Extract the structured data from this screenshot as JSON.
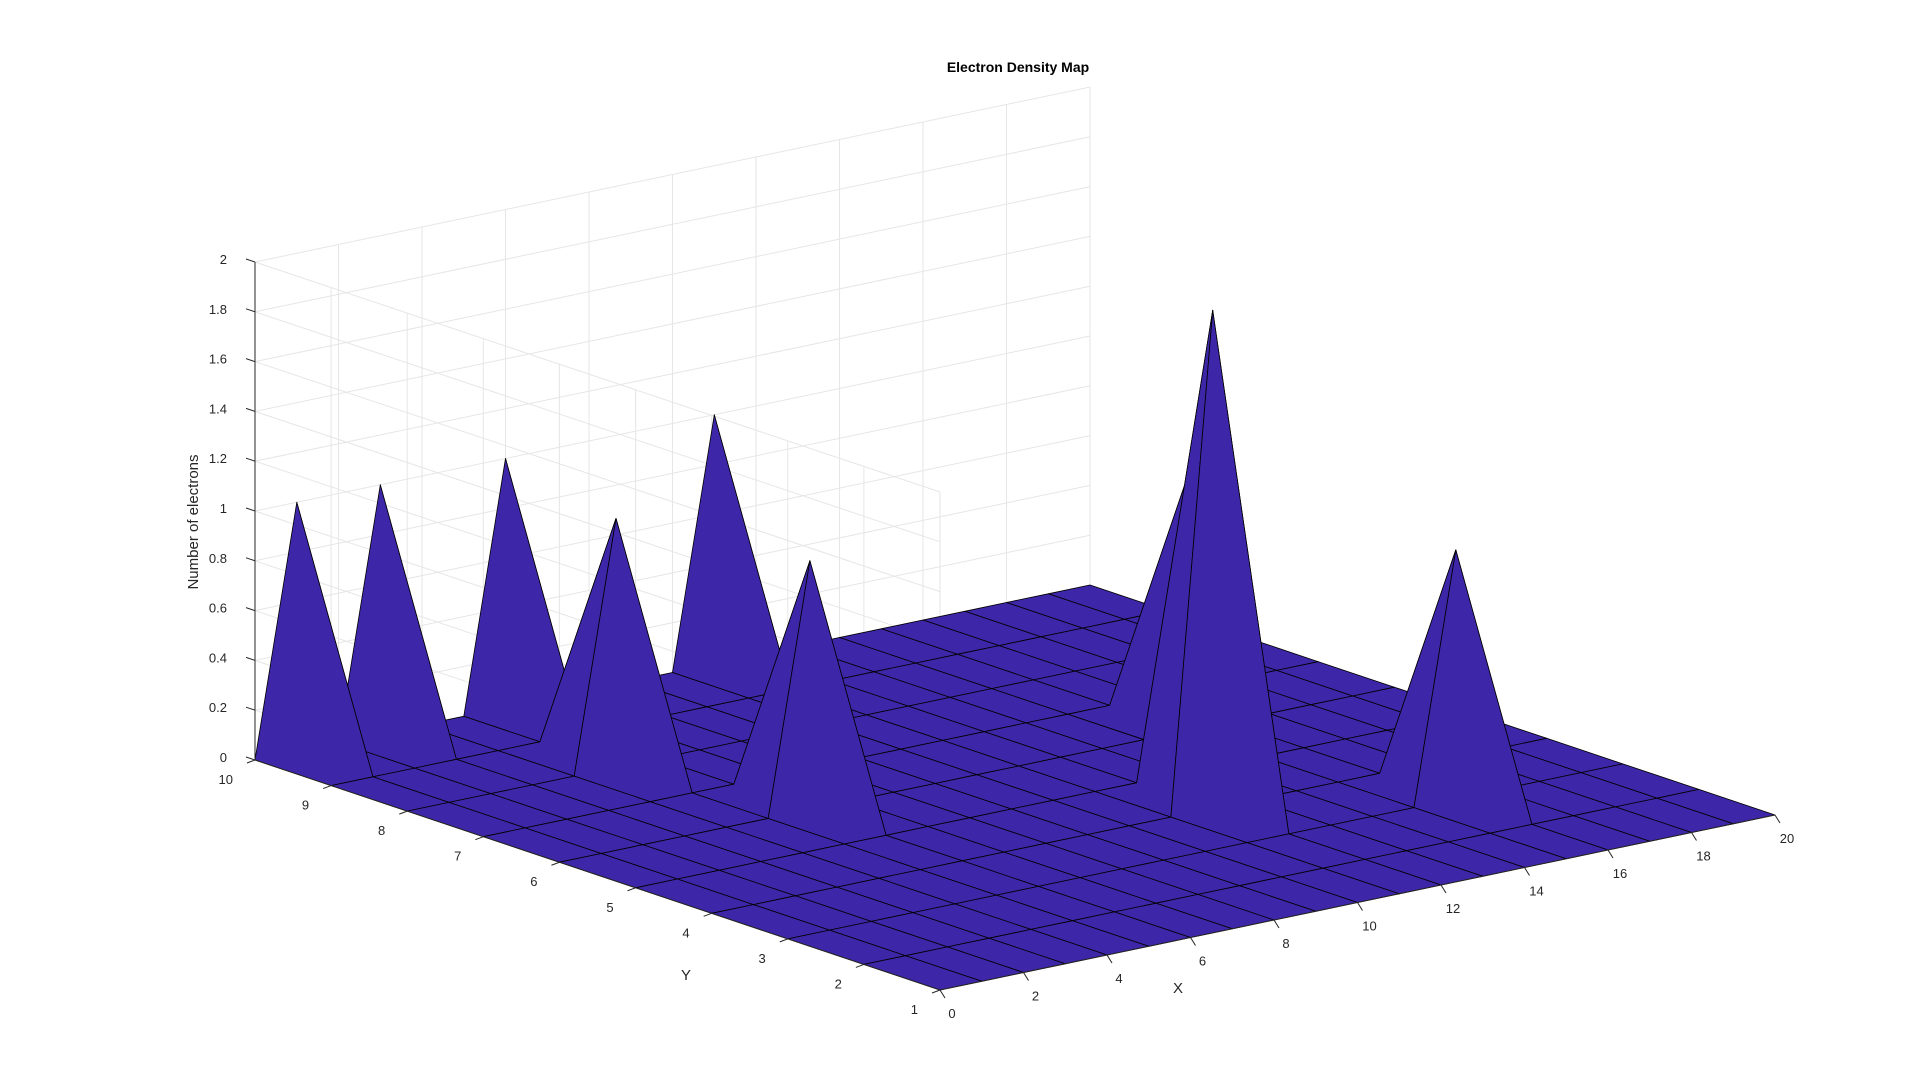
{
  "chart_data": {
    "type": "surface",
    "title": "Electron Density Map",
    "xlabel": "X",
    "ylabel": "Y",
    "zlabel": "Number of electrons",
    "xlim": [
      0,
      20
    ],
    "ylim": [
      1,
      10
    ],
    "zlim": [
      0,
      2
    ],
    "x_ticks": [
      "0",
      "2",
      "4",
      "6",
      "8",
      "10",
      "12",
      "14",
      "16",
      "18",
      "20"
    ],
    "y_ticks": [
      "1",
      "2",
      "3",
      "4",
      "5",
      "6",
      "7",
      "8",
      "9",
      "10"
    ],
    "z_ticks": [
      "0",
      "0.2",
      "0.4",
      "0.6",
      "0.8",
      "1",
      "1.2",
      "1.4",
      "1.6",
      "1.8",
      "2"
    ],
    "grid": true,
    "colormap": {
      "low": "#3e26a8",
      "mid": "#17bfb4",
      "high": "#f9fb0e"
    },
    "color_limits": [
      0,
      2
    ],
    "peaks": [
      {
        "x": 1,
        "y": 10,
        "z": 1
      },
      {
        "x": 3,
        "y": 10,
        "z": 1
      },
      {
        "x": 6,
        "y": 10,
        "z": 1
      },
      {
        "x": 5,
        "y": 8,
        "z": 1
      },
      {
        "x": 6,
        "y": 6,
        "z": 1
      },
      {
        "x": 11,
        "y": 10,
        "z": 1
      },
      {
        "x": 12,
        "y": 4,
        "z": 2
      },
      {
        "x": 15,
        "y": 6,
        "z": 1
      },
      {
        "x": 16,
        "y": 3,
        "z": 1
      }
    ]
  }
}
